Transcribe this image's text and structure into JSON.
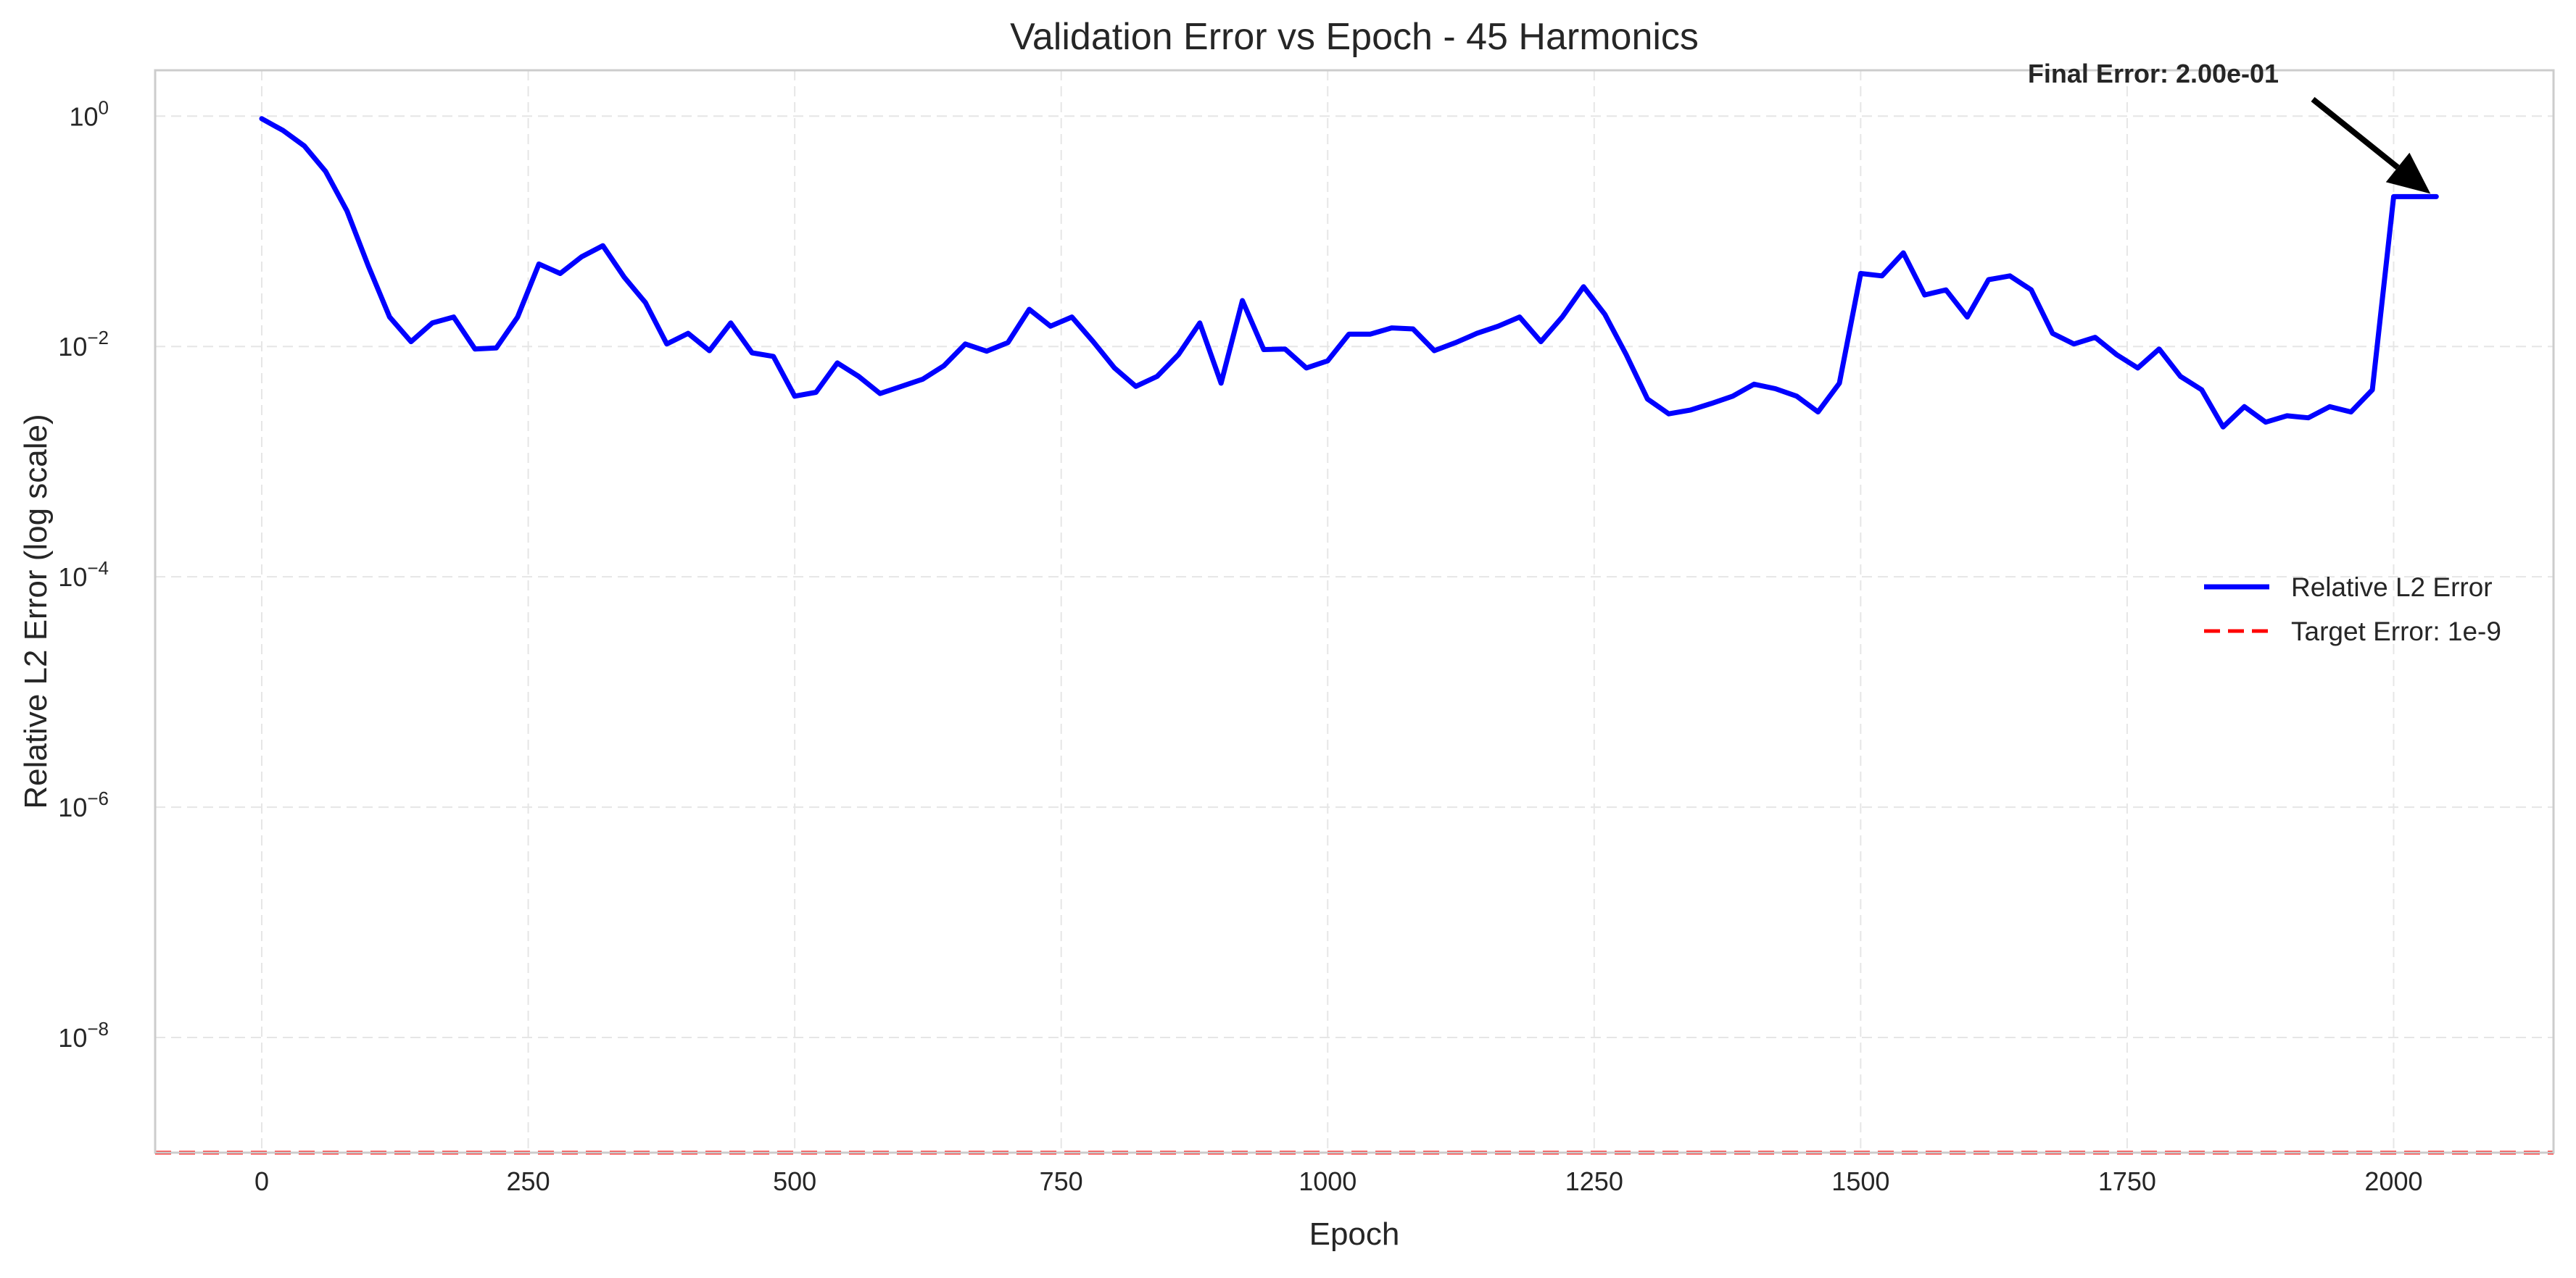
{
  "chart_data": {
    "type": "line",
    "title": "Validation Error vs Epoch - 45 Harmonics",
    "xlabel": "Epoch",
    "ylabel": "Relative L2 Error (log scale)",
    "xlim": [
      -100,
      2150
    ],
    "ylim": [
      1e-09,
      2.5
    ],
    "yscale": "log",
    "grid": true,
    "x_ticks": [
      0,
      250,
      500,
      750,
      1000,
      1250,
      1500,
      1750,
      2000
    ],
    "y_ticks": [
      {
        "value": 1e-08,
        "base": "10",
        "exp": "−8"
      },
      {
        "value": 1e-06,
        "base": "10",
        "exp": "−6"
      },
      {
        "value": 0.0001,
        "base": "10",
        "exp": "−4"
      },
      {
        "value": 0.01,
        "base": "10",
        "exp": "−2"
      },
      {
        "value": 1,
        "base": "10",
        "exp": "0"
      }
    ],
    "legend_position": "center-right",
    "colors": {
      "series": "#0000ff",
      "target": "#ff0000",
      "grid": "#e6e6e6",
      "frame": "#cccccc",
      "annotation": "#000000"
    },
    "series": [
      {
        "name": "Relative L2 Error",
        "style": "solid",
        "x": [
          0,
          20,
          40,
          60,
          80,
          100,
          120,
          140,
          160,
          180,
          200,
          220,
          240,
          260,
          280,
          300,
          320,
          340,
          360,
          380,
          400,
          420,
          440,
          460,
          480,
          500,
          520,
          540,
          560,
          580,
          600,
          620,
          640,
          660,
          680,
          700,
          720,
          740,
          760,
          780,
          800,
          820,
          840,
          860,
          880,
          900,
          920,
          940,
          960,
          980,
          1000,
          1020,
          1040,
          1060,
          1080,
          1100,
          1120,
          1140,
          1160,
          1180,
          1200,
          1220,
          1240,
          1260,
          1280,
          1300,
          1320,
          1340,
          1360,
          1380,
          1400,
          1420,
          1440,
          1460,
          1480,
          1500,
          1520,
          1540,
          1560,
          1580,
          1600,
          1620,
          1640,
          1660,
          1680,
          1700,
          1720,
          1740,
          1760,
          1780,
          1800,
          1820,
          1840,
          1860,
          1880,
          1900,
          1920,
          1940,
          1960,
          1980,
          2000,
          2020,
          2040
        ],
        "y": [
          0.95,
          0.75,
          0.55,
          0.33,
          0.15,
          0.05,
          0.018,
          0.011,
          0.016,
          0.018,
          0.0095,
          0.0097,
          0.018,
          0.052,
          0.043,
          0.06,
          0.075,
          0.04,
          0.024,
          0.0105,
          0.013,
          0.0092,
          0.016,
          0.0088,
          0.0082,
          0.0037,
          0.004,
          0.0072,
          0.0055,
          0.0039,
          0.0045,
          0.0052,
          0.0068,
          0.0105,
          0.0091,
          0.0108,
          0.021,
          0.015,
          0.018,
          0.011,
          0.0065,
          0.0045,
          0.0055,
          0.0085,
          0.016,
          0.0048,
          0.025,
          0.0094,
          0.0095,
          0.0065,
          0.0075,
          0.0128,
          0.0128,
          0.0145,
          0.0142,
          0.0092,
          0.0108,
          0.013,
          0.015,
          0.018,
          0.011,
          0.018,
          0.033,
          0.019,
          0.0085,
          0.0035,
          0.0026,
          0.0028,
          0.0032,
          0.0037,
          0.0047,
          0.0043,
          0.0037,
          0.0027,
          0.0048,
          0.043,
          0.041,
          0.065,
          0.028,
          0.031,
          0.018,
          0.038,
          0.041,
          0.031,
          0.013,
          0.0105,
          0.012,
          0.0085,
          0.0065,
          0.0095,
          0.0055,
          0.0042,
          0.002,
          0.003,
          0.0022,
          0.0025,
          0.0024,
          0.003,
          0.0027,
          0.0042,
          0.2,
          0.2,
          0.2
        ]
      },
      {
        "name": "Target Error: 1e-9",
        "style": "dashed",
        "y_constant": 1e-09
      }
    ],
    "annotation": {
      "text": "Final Error: 2.00e-01",
      "point": {
        "x": 2040,
        "y": 0.2
      }
    }
  }
}
